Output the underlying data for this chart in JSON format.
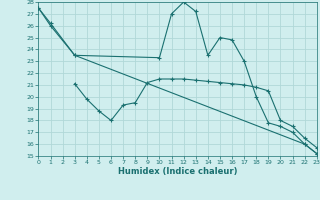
{
  "background_color": "#d0eeee",
  "grid_color": "#b0d8d8",
  "line_color": "#1a7070",
  "xlabel": "Humidex (Indice chaleur)",
  "ylim": [
    15,
    28
  ],
  "xlim": [
    0,
    23
  ],
  "yticks": [
    15,
    16,
    17,
    18,
    19,
    20,
    21,
    22,
    23,
    24,
    25,
    26,
    27,
    28
  ],
  "xticks": [
    0,
    1,
    2,
    3,
    4,
    5,
    6,
    7,
    8,
    9,
    10,
    11,
    12,
    13,
    14,
    15,
    16,
    17,
    18,
    19,
    20,
    21,
    22,
    23
  ],
  "line1_x": [
    0,
    1,
    3,
    10,
    11,
    12,
    13,
    14,
    15,
    16,
    17,
    18,
    19,
    20,
    21,
    22,
    23
  ],
  "line1_y": [
    27.5,
    26.0,
    23.5,
    23.3,
    27.0,
    28.0,
    27.2,
    23.5,
    25.0,
    24.8,
    23.0,
    20.0,
    17.8,
    17.5,
    17.0,
    16.0,
    15.2
  ],
  "line2_x": [
    0,
    1,
    3,
    22,
    23
  ],
  "line2_y": [
    27.5,
    26.2,
    23.5,
    16.0,
    15.2
  ],
  "line3_x": [
    3,
    4,
    5,
    6,
    7,
    8,
    9,
    10,
    11,
    12,
    13,
    14,
    15,
    16,
    17,
    18,
    19,
    20,
    21,
    22,
    23
  ],
  "line3_y": [
    21.1,
    19.8,
    18.8,
    18.0,
    19.3,
    19.5,
    21.2,
    21.5,
    21.5,
    21.5,
    21.4,
    21.3,
    21.2,
    21.1,
    21.0,
    20.8,
    20.5,
    18.0,
    17.5,
    16.5,
    15.7
  ]
}
